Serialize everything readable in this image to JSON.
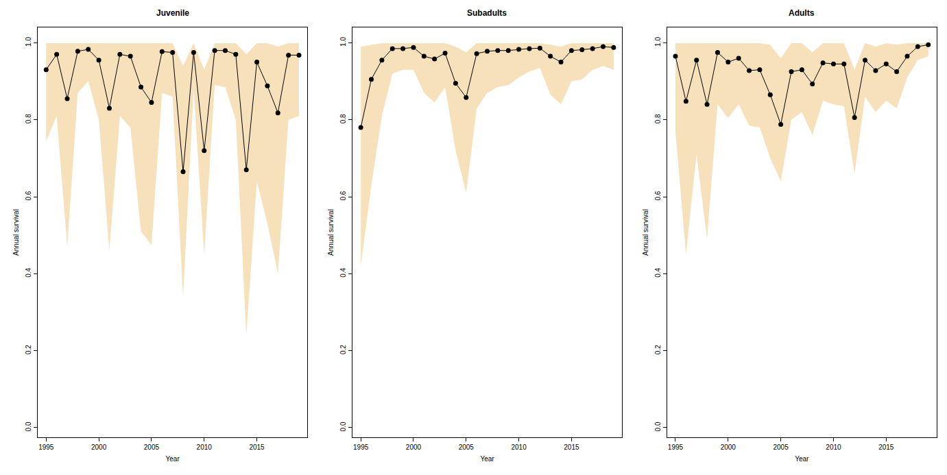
{
  "chart_data": [
    {
      "type": "line",
      "title": "Juvenile",
      "x_label": "Year",
      "y_label": "Annual survival",
      "x": [
        1995,
        1996,
        1997,
        1998,
        1999,
        2000,
        2001,
        2002,
        2003,
        2004,
        2005,
        2006,
        2007,
        2008,
        2009,
        2010,
        2011,
        2012,
        2013,
        2014,
        2015,
        2016,
        2017,
        2018,
        2019
      ],
      "series": [
        {
          "color": "#000000",
          "marker": "circle",
          "line_style": "solid",
          "values": [
            0.93,
            0.97,
            0.855,
            0.978,
            0.983,
            0.955,
            0.83,
            0.97,
            0.965,
            0.885,
            0.845,
            0.977,
            0.975,
            0.665,
            0.975,
            0.72,
            0.98,
            0.98,
            0.97,
            0.67,
            0.95,
            0.888,
            0.818,
            0.968,
            0.968
          ],
          "lower": [
            0.745,
            0.81,
            0.47,
            0.87,
            0.9,
            0.8,
            0.46,
            0.81,
            0.78,
            0.51,
            0.475,
            0.87,
            0.86,
            0.34,
            0.88,
            0.45,
            0.89,
            0.885,
            0.8,
            0.24,
            0.64,
            0.53,
            0.4,
            0.8,
            0.81
          ],
          "upper": [
            0.999,
            0.999,
            0.999,
            0.999,
            0.999,
            0.999,
            0.999,
            0.999,
            0.999,
            0.999,
            0.999,
            0.999,
            0.999,
            0.94,
            0.999,
            0.93,
            0.999,
            0.999,
            0.999,
            0.97,
            0.999,
            0.999,
            0.99,
            0.999,
            0.999
          ]
        }
      ],
      "xlim": [
        1994.2,
        2019.8
      ],
      "xticks": [
        1995,
        2000,
        2005,
        2010,
        2015
      ],
      "ylim": [
        -0.025,
        1.04
      ],
      "yticks": [
        {
          "value": 0,
          "label": "0.0"
        },
        0.2,
        0.4,
        0.6,
        0.8,
        {
          "value": 1,
          "label": "1.0"
        }
      ],
      "grid": false
    },
    {
      "type": "line",
      "title": "Subadults",
      "x_label": "Year",
      "y_label": "Annual survival",
      "x": [
        1995,
        1996,
        1997,
        1998,
        1999,
        2000,
        2001,
        2002,
        2003,
        2004,
        2005,
        2006,
        2007,
        2008,
        2009,
        2010,
        2011,
        2012,
        2013,
        2014,
        2015,
        2016,
        2017,
        2018,
        2019
      ],
      "series": [
        {
          "color": "#000000",
          "marker": "circle",
          "line_style": "solid",
          "values": [
            0.78,
            0.905,
            0.955,
            0.985,
            0.985,
            0.988,
            0.965,
            0.958,
            0.973,
            0.895,
            0.858,
            0.972,
            0.978,
            0.98,
            0.98,
            0.983,
            0.985,
            0.986,
            0.965,
            0.95,
            0.98,
            0.982,
            0.985,
            0.99,
            0.988
          ],
          "lower": [
            0.42,
            0.63,
            0.81,
            0.92,
            0.93,
            0.93,
            0.87,
            0.845,
            0.885,
            0.72,
            0.61,
            0.83,
            0.87,
            0.885,
            0.89,
            0.91,
            0.925,
            0.935,
            0.865,
            0.84,
            0.9,
            0.905,
            0.93,
            0.94,
            0.93
          ],
          "upper": [
            0.99,
            0.995,
            0.999,
            0.999,
            0.999,
            0.999,
            0.999,
            0.999,
            0.999,
            0.99,
            0.975,
            0.999,
            0.999,
            0.999,
            0.999,
            0.999,
            0.999,
            0.999,
            0.995,
            0.99,
            0.999,
            0.999,
            0.999,
            0.999,
            0.999
          ]
        }
      ],
      "xlim": [
        1994.2,
        2019.8
      ],
      "xticks": [
        1995,
        2000,
        2005,
        2010,
        2015
      ],
      "ylim": [
        -0.025,
        1.04
      ],
      "yticks": [
        {
          "value": 0,
          "label": "0.0"
        },
        0.2,
        0.4,
        0.6,
        0.8,
        {
          "value": 1,
          "label": "1.0"
        }
      ],
      "grid": false
    },
    {
      "type": "line",
      "title": "Adults",
      "x_label": "Year",
      "y_label": "Annual survival",
      "x": [
        1995,
        1996,
        1997,
        1998,
        1999,
        2000,
        2001,
        2002,
        2003,
        2004,
        2005,
        2006,
        2007,
        2008,
        2009,
        2010,
        2011,
        2012,
        2013,
        2014,
        2015,
        2016,
        2017,
        2018,
        2019
      ],
      "series": [
        {
          "color": "#000000",
          "marker": "circle",
          "line_style": "solid",
          "values": [
            0.965,
            0.848,
            0.955,
            0.84,
            0.975,
            0.95,
            0.96,
            0.928,
            0.93,
            0.865,
            0.788,
            0.925,
            0.93,
            0.893,
            0.948,
            0.945,
            0.945,
            0.806,
            0.955,
            0.928,
            0.945,
            0.925,
            0.965,
            0.99,
            0.995
          ],
          "lower": [
            0.77,
            0.45,
            0.71,
            0.49,
            0.84,
            0.805,
            0.84,
            0.785,
            0.78,
            0.7,
            0.64,
            0.8,
            0.82,
            0.76,
            0.85,
            0.84,
            0.835,
            0.66,
            0.86,
            0.82,
            0.85,
            0.83,
            0.91,
            0.955,
            0.965
          ],
          "upper": [
            0.999,
            0.999,
            0.999,
            0.999,
            0.999,
            0.999,
            0.999,
            0.999,
            0.999,
            0.995,
            0.96,
            0.999,
            0.999,
            0.975,
            0.999,
            0.999,
            0.999,
            0.93,
            0.999,
            0.99,
            0.999,
            0.995,
            0.999,
            0.999,
            0.999
          ]
        }
      ],
      "xlim": [
        1994.2,
        2019.8
      ],
      "xticks": [
        1995,
        2000,
        2005,
        2010,
        2015
      ],
      "ylim": [
        -0.025,
        1.04
      ],
      "yticks": [
        {
          "value": 0,
          "label": "0.0"
        },
        0.2,
        0.4,
        0.6,
        0.8,
        {
          "value": 1,
          "label": "1.0"
        }
      ],
      "grid": false
    }
  ]
}
